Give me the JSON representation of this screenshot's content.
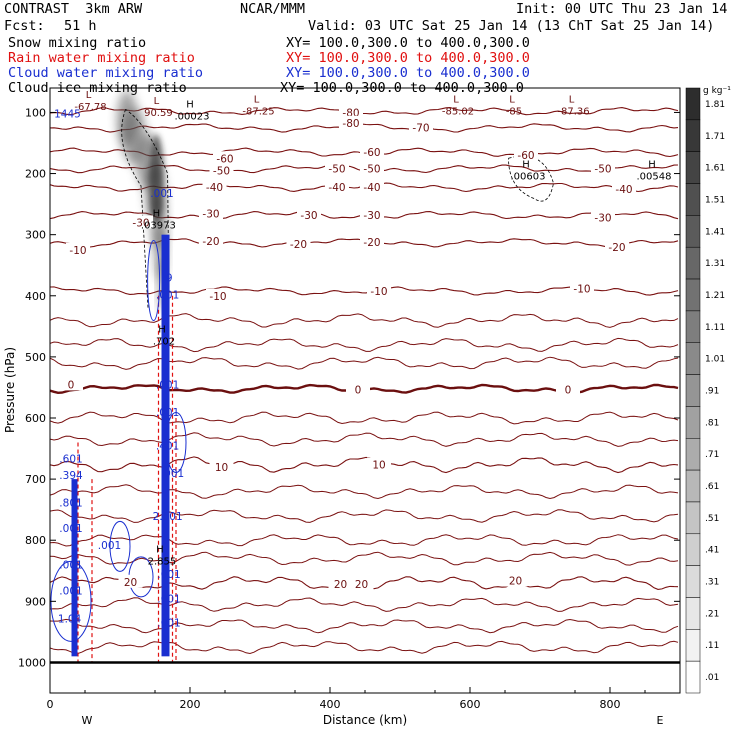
{
  "header": {
    "model": "CONTRAST  3km ARW",
    "center": "NCAR/MMM",
    "init": "Init: 00 UTC Thu 23 Jan 14",
    "fcst_label": "Fcst:",
    "fcst_value": "51 h",
    "valid": "Valid: 03 UTC Sat 25 Jan 14 (13 ChT Sat 25 Jan 14)",
    "fields": [
      {
        "name": "Snow mixing ratio",
        "xy": "XY= 100.0,300.0 to 400.0,300.0",
        "color": "#000000"
      },
      {
        "name": "Rain water mixing ratio",
        "xy": "XY= 100.0,300.0 to 400.0,300.0",
        "color": "#e01010"
      },
      {
        "name": "Cloud water mixing ratio",
        "xy": "XY= 100.0,300.0 to 400.0,300.0",
        "color": "#1a2fd0"
      },
      {
        "name": "Cloud ice mixing ratio",
        "xy": "XY= 100.0,300.0 to 400.0,300.0",
        "color": "#000000"
      }
    ]
  },
  "chart_data": {
    "type": "cross-section",
    "xlabel": "Distance (km)",
    "ylabel": "Pressure (hPa)",
    "xlim": [
      0,
      900
    ],
    "ylim": [
      1050,
      60
    ],
    "x_ticks": [
      0,
      200,
      400,
      600,
      800
    ],
    "y_ticks": [
      100,
      200,
      300,
      400,
      500,
      600,
      700,
      800,
      900,
      1000
    ],
    "x_end_labels": {
      "left": "W",
      "right": "E"
    },
    "temperature_contours_C": [
      -80,
      -70,
      -60,
      -50,
      -40,
      -30,
      -20,
      -10,
      0,
      10,
      20
    ],
    "temperature_label_values": [
      {
        "x": 40,
        "p": 325,
        "text": "-10"
      },
      {
        "x": 130,
        "p": 280,
        "text": "-30"
      },
      {
        "x": 430,
        "p": 100,
        "text": "-80"
      },
      {
        "x": 430,
        "p": 117,
        "text": "-80"
      },
      {
        "x": 530,
        "p": 125,
        "text": "-70"
      },
      {
        "x": 250,
        "p": 175,
        "text": "-60"
      },
      {
        "x": 460,
        "p": 165,
        "text": "-60"
      },
      {
        "x": 680,
        "p": 170,
        "text": "-60"
      },
      {
        "x": 245,
        "p": 195,
        "text": "-50"
      },
      {
        "x": 410,
        "p": 192,
        "text": "-50"
      },
      {
        "x": 460,
        "p": 192,
        "text": "-50"
      },
      {
        "x": 790,
        "p": 192,
        "text": "-50"
      },
      {
        "x": 235,
        "p": 222,
        "text": "-40"
      },
      {
        "x": 410,
        "p": 222,
        "text": "-40"
      },
      {
        "x": 460,
        "p": 222,
        "text": "-40"
      },
      {
        "x": 820,
        "p": 225,
        "text": "-40"
      },
      {
        "x": 230,
        "p": 265,
        "text": "-30"
      },
      {
        "x": 370,
        "p": 268,
        "text": "-30"
      },
      {
        "x": 460,
        "p": 268,
        "text": "-30"
      },
      {
        "x": 790,
        "p": 272,
        "text": "-30"
      },
      {
        "x": 230,
        "p": 310,
        "text": "-20"
      },
      {
        "x": 355,
        "p": 315,
        "text": "-20"
      },
      {
        "x": 460,
        "p": 312,
        "text": "-20"
      },
      {
        "x": 810,
        "p": 320,
        "text": "-20"
      },
      {
        "x": 240,
        "p": 400,
        "text": "-10"
      },
      {
        "x": 470,
        "p": 392,
        "text": "-10"
      },
      {
        "x": 760,
        "p": 388,
        "text": "-10"
      },
      {
        "x": 30,
        "p": 545,
        "text": "0"
      },
      {
        "x": 440,
        "p": 553,
        "text": "0"
      },
      {
        "x": 740,
        "p": 553,
        "text": "0"
      },
      {
        "x": 245,
        "p": 680,
        "text": "10"
      },
      {
        "x": 470,
        "p": 676,
        "text": "10"
      },
      {
        "x": 115,
        "p": 868,
        "text": "20"
      },
      {
        "x": 415,
        "p": 872,
        "text": "20"
      },
      {
        "x": 445,
        "p": 872,
        "text": "20"
      },
      {
        "x": 665,
        "p": 866,
        "text": "20"
      }
    ],
    "extrema": [
      {
        "type": "H",
        "x": 200,
        "p": 92,
        "value": ".00023"
      },
      {
        "type": "L",
        "x": 295,
        "p": 84,
        "value": "-87.25"
      },
      {
        "type": "L",
        "x": 152,
        "p": 86,
        "value": "90.59"
      },
      {
        "type": "L",
        "x": 55,
        "p": 76,
        "value": "-67.78"
      },
      {
        "type": "L",
        "x": 580,
        "p": 84,
        "value": "-85.02"
      },
      {
        "type": "L",
        "x": 660,
        "p": 84,
        "value": "-85"
      },
      {
        "type": "L",
        "x": 745,
        "p": 84,
        "value": "-87.36"
      },
      {
        "type": "H",
        "x": 680,
        "p": 190,
        "value": ".00603"
      },
      {
        "type": "H",
        "x": 860,
        "p": 190,
        "value": ".00548"
      },
      {
        "type": "H",
        "x": 152,
        "p": 270,
        "value": ".03973"
      },
      {
        "type": "H",
        "x": 160,
        "p": 460,
        "value": ".702"
      },
      {
        "type": "H",
        "x": 157,
        "p": 820,
        "value": "2.855"
      }
    ],
    "mixing_ratio_labels": [
      {
        "x": 25,
        "p": 102,
        "text": "1445"
      },
      {
        "x": 160,
        "p": 232,
        "text": ".001"
      },
      {
        "x": 168,
        "p": 370,
        "text": ".9"
      },
      {
        "x": 168,
        "p": 398,
        "text": ".001"
      },
      {
        "x": 168,
        "p": 545,
        "text": ".001"
      },
      {
        "x": 168,
        "p": 590,
        "text": ".001"
      },
      {
        "x": 168,
        "p": 645,
        "text": ".401"
      },
      {
        "x": 175,
        "p": 690,
        "text": ".001"
      },
      {
        "x": 168,
        "p": 760,
        "text": "2.601"
      },
      {
        "x": 85,
        "p": 808,
        "text": ".001"
      },
      {
        "x": 30,
        "p": 693,
        "text": ".394"
      },
      {
        "x": 30,
        "p": 666,
        "text": ".601"
      },
      {
        "x": 30,
        "p": 738,
        "text": ".801"
      },
      {
        "x": 30,
        "p": 780,
        "text": ".001"
      },
      {
        "x": 30,
        "p": 840,
        "text": ".001"
      },
      {
        "x": 30,
        "p": 882,
        "text": ".001"
      },
      {
        "x": 28,
        "p": 928,
        "text": "1.04"
      },
      {
        "x": 170,
        "p": 855,
        "text": ".001"
      },
      {
        "x": 170,
        "p": 895,
        "text": ".001"
      },
      {
        "x": 170,
        "p": 935,
        "text": ".001"
      }
    ],
    "colorbar": {
      "units": "g kg⁻¹",
      "levels": [
        1.81,
        1.71,
        1.61,
        1.51,
        1.41,
        1.31,
        1.21,
        1.11,
        1.01,
        0.91,
        0.81,
        0.71,
        0.61,
        0.51,
        0.41,
        0.31,
        0.21,
        0.11,
        0.01
      ],
      "labels": [
        "1.81",
        "1.71",
        "1.61",
        "1.51",
        "1.41",
        "1.31",
        "1.21",
        "1.11",
        "1.01",
        ".91",
        ".81",
        ".71",
        ".61",
        ".51",
        ".41",
        ".31",
        ".21",
        ".11",
        ".01"
      ]
    },
    "colors": {
      "temperature": "#7a1111",
      "zero_line": "#6b0f0f",
      "rain": "#e01010",
      "cloud_water": "#1a2fd0",
      "snow_ice": "#000000",
      "ground": "#000000"
    }
  }
}
